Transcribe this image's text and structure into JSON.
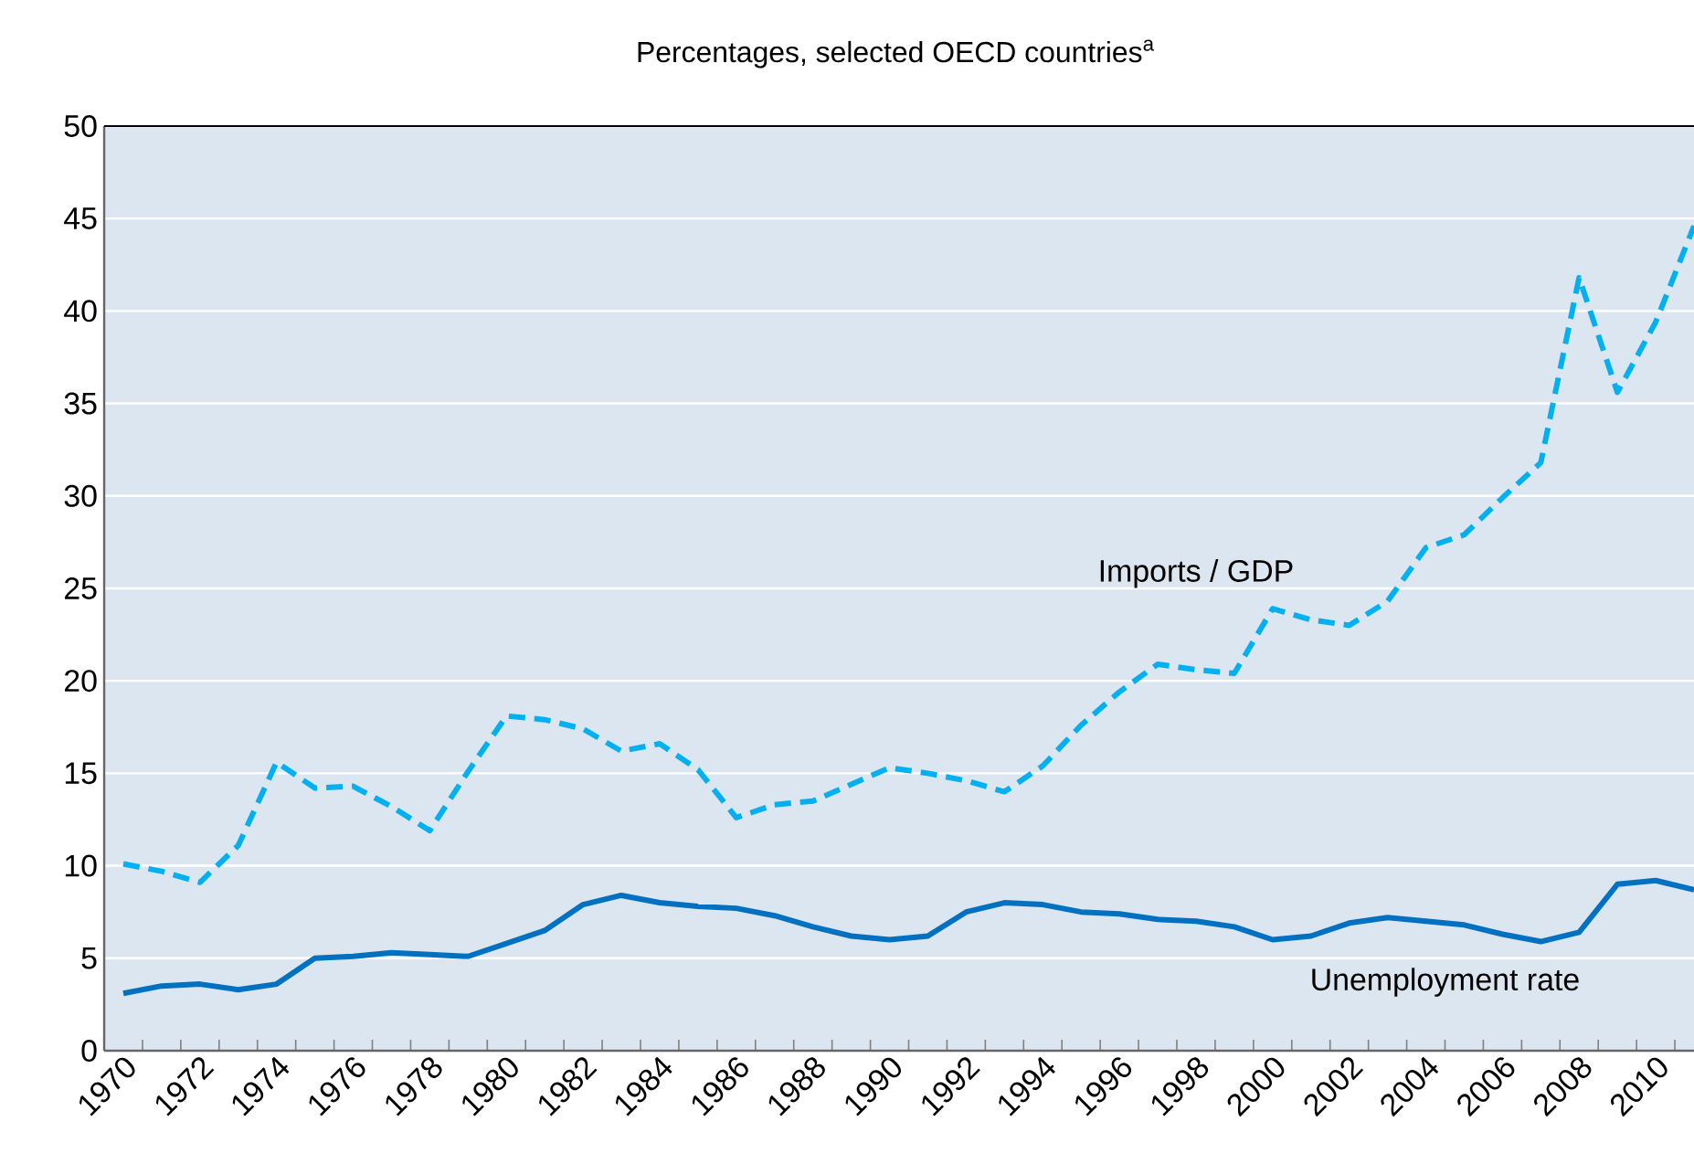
{
  "chart_data": {
    "type": "line",
    "title": "Percentages, selected OECD countries$^{a}$",
    "categories": [
      "1970",
      null,
      "1972",
      null,
      "1974",
      null,
      "1976",
      null,
      "1978",
      null,
      "1980",
      null,
      "1982",
      null,
      "1984",
      null,
      "1986",
      null,
      "1988",
      null,
      "1990",
      null,
      "1992",
      null,
      "1994",
      null,
      "1996",
      null,
      "1998",
      null,
      "2000",
      null,
      "2002",
      null,
      "2004",
      null,
      "2006",
      null,
      "2008",
      null,
      "2010",
      null
    ],
    "series": [
      {
        "name": "Imports / GDP",
        "color": "#00b0f0",
        "line_style": "dashed",
        "values": [
          10.1,
          9.7,
          9.1,
          11.1,
          15.6,
          14.2,
          14.3,
          13.2,
          11.9,
          15.1,
          18.1,
          17.9,
          17.4,
          16.2,
          16.6,
          15.2,
          12.6,
          13.3,
          13.5,
          14.4,
          15.3,
          15.0,
          14.6,
          14.0,
          15.4,
          17.6,
          19.4,
          20.9,
          20.6,
          20.4,
          23.9,
          23.3,
          23.0,
          24.3,
          27.2,
          27.9,
          29.9,
          31.8,
          41.8,
          35.6,
          39.4,
          44.6
        ]
      },
      {
        "name": "Unemployment rate",
        "color": "#0070c0",
        "line_style": "solid",
        "values": [
          3.1,
          3.5,
          3.6,
          3.3,
          3.6,
          5.0,
          5.1,
          5.3,
          5.2,
          5.1,
          5.8,
          6.5,
          7.9,
          8.4,
          8.0,
          7.8,
          7.7,
          7.3,
          6.7,
          6.2,
          6.0,
          6.2,
          7.5,
          8.0,
          7.9,
          7.5,
          7.4,
          7.1,
          7.0,
          6.7,
          6.0,
          6.2,
          6.9,
          7.2,
          7.0,
          6.8,
          6.3,
          5.9,
          6.4,
          9.0,
          9.2,
          8.7
        ]
      }
    ],
    "ylim": [
      0,
      50
    ],
    "yticks": [
      0,
      5,
      10,
      15,
      20,
      25,
      30,
      35,
      40,
      45,
      50
    ],
    "grid": "y",
    "legend": false
  }
}
